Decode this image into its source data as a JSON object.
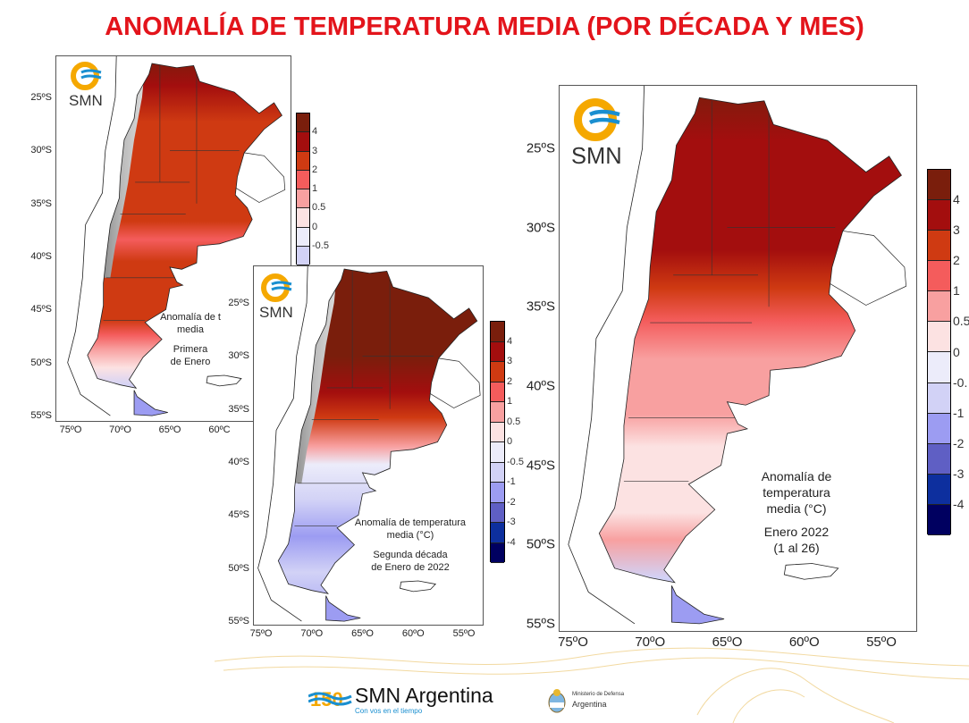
{
  "title": "ANOMALÍA DE TEMPERATURA MEDIA (POR DÉCADA Y MES)",
  "colorbar_colors": [
    "#7a1e0c",
    "#a30e0e",
    "#cf3a12",
    "#f45c5c",
    "#f8a0a0",
    "#fce2e2",
    "#ececfa",
    "#d2d2f6",
    "#9c9cf2",
    "#5f5fc4",
    "#0d2f9e",
    "#000060"
  ],
  "maps": [
    {
      "logo_text": "SMN",
      "lat_labels": [
        "25ºS",
        "30ºS",
        "35ºS",
        "40ºS",
        "45ºS",
        "50ºS",
        "55ºS"
      ],
      "lon_labels": [
        "75ºO",
        "70ºO",
        "65ºO",
        "60ºC"
      ],
      "colorbar_labels": [
        "4",
        "3",
        "2",
        "1",
        "0.5",
        "0",
        "-0.5"
      ],
      "caption": [
        "Anomalía de t",
        "media",
        "",
        "Primera",
        "de Enero"
      ]
    },
    {
      "logo_text": "SMN",
      "lat_labels": [
        "25ºS",
        "30ºS",
        "35ºS",
        "40ºS",
        "45ºS",
        "50ºS",
        "55ºS"
      ],
      "lon_labels": [
        "75ºO",
        "70ºO",
        "65ºO",
        "60ºO",
        "55ºO"
      ],
      "colorbar_labels": [
        "4",
        "3",
        "2",
        "1",
        "0.5",
        "0",
        "-0.5",
        "-1",
        "-2",
        "-3",
        "-4"
      ],
      "caption": [
        "Anomalía de temperatura",
        "media (°C)",
        "",
        "Segunda década",
        "de Enero de 2022"
      ]
    },
    {
      "logo_text": "SMN",
      "lat_labels": [
        "25ºS",
        "30ºS",
        "35ºS",
        "40ºS",
        "45ºS",
        "50ºS",
        "55ºS"
      ],
      "lon_labels": [
        "75ºO",
        "70ºO",
        "65ºO",
        "60ºO",
        "55ºO"
      ],
      "colorbar_labels": [
        "4",
        "3",
        "2",
        "1",
        "0.5",
        "0",
        "-0.",
        "-1",
        "-2",
        "-3",
        "-4"
      ],
      "caption": [
        "Anomalía de temperatura",
        "media (°C)",
        "",
        "Enero 2022",
        "(1 al 26)"
      ]
    }
  ],
  "footer": {
    "brand": "SMN Argentina",
    "brand_number": "150",
    "tagline": "Con vos en el tiempo",
    "ministry_line1": "Ministerio de Defensa",
    "ministry_line2": "Argentina"
  }
}
